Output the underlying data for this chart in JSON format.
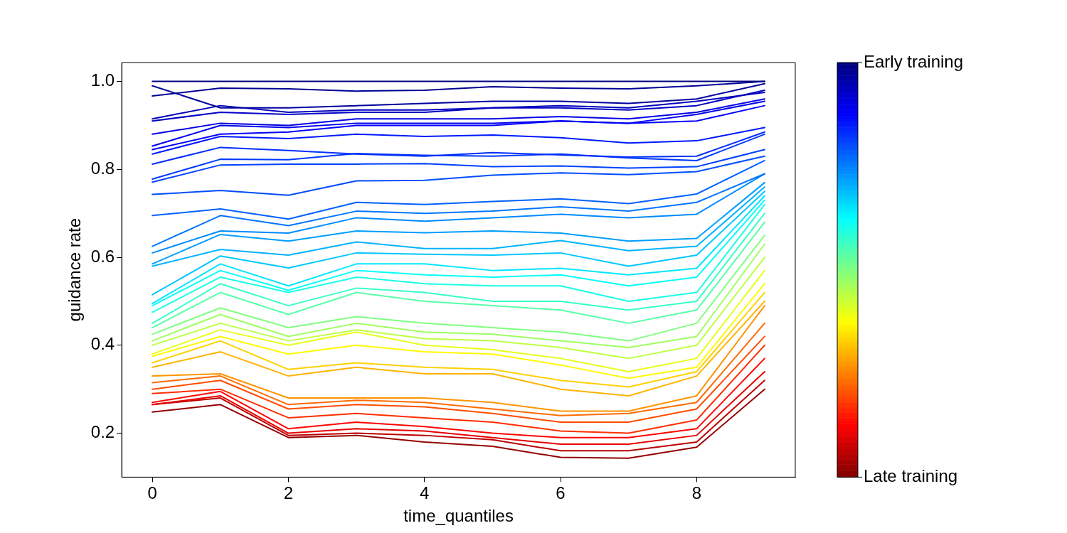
{
  "chart_data": {
    "type": "line",
    "xlabel": "time_quantiles",
    "ylabel": "guidance rate",
    "x": [
      0,
      1,
      2,
      3,
      4,
      5,
      6,
      7,
      8,
      9
    ],
    "xlim": [
      -0.45,
      9.45
    ],
    "xticks": [
      0,
      2,
      4,
      6,
      8
    ],
    "ylim": [
      0.1,
      1.043
    ],
    "yticks": [
      {
        "value": 0.2,
        "label": "0.2"
      },
      {
        "value": 0.4,
        "label": "0.4"
      },
      {
        "value": 0.6,
        "label": "0.6"
      },
      {
        "value": 0.8,
        "label": "0.8"
      },
      {
        "value": 1,
        "label": "1.0"
      }
    ],
    "grid": false,
    "legend": false,
    "marker": "none",
    "line_style": "solid",
    "clim": [
      0,
      1
    ],
    "cticks": [
      {
        "value": 1,
        "label": "Early training"
      },
      {
        "value": 0,
        "label": "Late training"
      }
    ],
    "series": [
      {
        "color": "#000080",
        "values": [
          1.0,
          1.0,
          1.0,
          1.0,
          1.0,
          1.0,
          1.0,
          1.0,
          1.0,
          1.0
        ]
      },
      {
        "color": "#00009e",
        "values": [
          0.99,
          0.94,
          0.94,
          0.945,
          0.95,
          0.955,
          0.955,
          0.95,
          0.96,
          0.995
        ]
      },
      {
        "color": "#000094",
        "values": [
          0.967,
          0.985,
          0.983,
          0.978,
          0.98,
          0.988,
          0.985,
          0.983,
          0.99,
          1.0
        ]
      },
      {
        "color": "#0000bd",
        "values": [
          0.915,
          0.945,
          0.93,
          0.935,
          0.935,
          0.94,
          0.945,
          0.94,
          0.955,
          0.975
        ]
      },
      {
        "color": "#0000c7",
        "values": [
          0.91,
          0.93,
          0.925,
          0.93,
          0.93,
          0.94,
          0.94,
          0.935,
          0.945,
          0.98
        ]
      },
      {
        "color": "#0000e6",
        "values": [
          0.88,
          0.905,
          0.9,
          0.915,
          0.915,
          0.915,
          0.92,
          0.915,
          0.93,
          0.96
        ]
      },
      {
        "color": "#0000f0",
        "values": [
          0.853,
          0.9,
          0.895,
          0.905,
          0.905,
          0.905,
          0.91,
          0.905,
          0.925,
          0.955
        ]
      },
      {
        "color": "#0000fa",
        "values": [
          0.845,
          0.88,
          0.885,
          0.9,
          0.9,
          0.9,
          0.91,
          0.905,
          0.91,
          0.945
        ]
      },
      {
        "color": "#001aff",
        "values": [
          0.835,
          0.875,
          0.87,
          0.88,
          0.875,
          0.878,
          0.872,
          0.86,
          0.865,
          0.895
        ]
      },
      {
        "color": "#002eff",
        "values": [
          0.812,
          0.85,
          0.843,
          0.835,
          0.83,
          0.838,
          0.833,
          0.828,
          0.83,
          0.885
        ]
      },
      {
        "color": "#0038ff",
        "values": [
          0.778,
          0.823,
          0.822,
          0.836,
          0.832,
          0.83,
          0.835,
          0.826,
          0.82,
          0.88
        ]
      },
      {
        "color": "#0042ff",
        "values": [
          0.771,
          0.81,
          0.812,
          0.812,
          0.813,
          0.806,
          0.808,
          0.803,
          0.806,
          0.845
        ]
      },
      {
        "color": "#004dff",
        "values": [
          0.743,
          0.752,
          0.741,
          0.774,
          0.775,
          0.787,
          0.792,
          0.788,
          0.795,
          0.83
        ]
      },
      {
        "color": "#0061ff",
        "values": [
          0.695,
          0.71,
          0.687,
          0.725,
          0.72,
          0.727,
          0.733,
          0.722,
          0.744,
          0.82
        ]
      },
      {
        "color": "#0075ff",
        "values": [
          0.625,
          0.695,
          0.672,
          0.705,
          0.7,
          0.705,
          0.715,
          0.705,
          0.725,
          0.79
        ]
      },
      {
        "color": "#008aff",
        "values": [
          0.61,
          0.66,
          0.655,
          0.69,
          0.682,
          0.69,
          0.698,
          0.69,
          0.698,
          0.79
        ]
      },
      {
        "color": "#009eff",
        "values": [
          0.585,
          0.652,
          0.637,
          0.66,
          0.656,
          0.66,
          0.655,
          0.637,
          0.643,
          0.77
        ]
      },
      {
        "color": "#00b3ff",
        "values": [
          0.58,
          0.618,
          0.605,
          0.635,
          0.62,
          0.62,
          0.638,
          0.615,
          0.625,
          0.76
        ]
      },
      {
        "color": "#00c7ff",
        "values": [
          0.515,
          0.603,
          0.576,
          0.61,
          0.607,
          0.605,
          0.61,
          0.58,
          0.605,
          0.75
        ]
      },
      {
        "color": "#00e6ff",
        "values": [
          0.495,
          0.585,
          0.535,
          0.585,
          0.585,
          0.57,
          0.575,
          0.56,
          0.575,
          0.74
        ]
      },
      {
        "color": "#05fffa",
        "values": [
          0.49,
          0.57,
          0.525,
          0.57,
          0.56,
          0.555,
          0.56,
          0.535,
          0.555,
          0.73
        ]
      },
      {
        "color": "#1affe6",
        "values": [
          0.475,
          0.555,
          0.52,
          0.555,
          0.54,
          0.535,
          0.535,
          0.5,
          0.52,
          0.72
        ]
      },
      {
        "color": "#38ffc7",
        "values": [
          0.45,
          0.54,
          0.49,
          0.53,
          0.52,
          0.5,
          0.5,
          0.48,
          0.5,
          0.7
        ]
      },
      {
        "color": "#57ffa8",
        "values": [
          0.44,
          0.52,
          0.47,
          0.52,
          0.5,
          0.49,
          0.48,
          0.45,
          0.48,
          0.68
        ]
      },
      {
        "color": "#80ff80",
        "values": [
          0.425,
          0.485,
          0.44,
          0.465,
          0.45,
          0.44,
          0.43,
          0.41,
          0.45,
          0.65
        ]
      },
      {
        "color": "#9eff61",
        "values": [
          0.41,
          0.47,
          0.42,
          0.45,
          0.43,
          0.425,
          0.41,
          0.395,
          0.42,
          0.63
        ]
      },
      {
        "color": "#bdff42",
        "values": [
          0.4,
          0.45,
          0.41,
          0.435,
          0.415,
          0.41,
          0.395,
          0.37,
          0.4,
          0.6
        ]
      },
      {
        "color": "#e6ff1a",
        "values": [
          0.38,
          0.435,
          0.4,
          0.43,
          0.4,
          0.39,
          0.37,
          0.34,
          0.37,
          0.57
        ]
      },
      {
        "color": "#fffa00",
        "values": [
          0.375,
          0.42,
          0.38,
          0.4,
          0.385,
          0.38,
          0.355,
          0.325,
          0.35,
          0.54
        ]
      },
      {
        "color": "#ffd100",
        "values": [
          0.36,
          0.41,
          0.345,
          0.36,
          0.35,
          0.345,
          0.32,
          0.305,
          0.34,
          0.52
        ]
      },
      {
        "color": "#ffb300",
        "values": [
          0.35,
          0.385,
          0.33,
          0.35,
          0.335,
          0.335,
          0.3,
          0.285,
          0.33,
          0.5
        ]
      },
      {
        "color": "#ff9400",
        "values": [
          0.33,
          0.335,
          0.28,
          0.28,
          0.28,
          0.27,
          0.25,
          0.25,
          0.285,
          0.49
        ]
      },
      {
        "color": "#ff6b00",
        "values": [
          0.315,
          0.33,
          0.265,
          0.275,
          0.27,
          0.255,
          0.24,
          0.245,
          0.27,
          0.45
        ]
      },
      {
        "color": "#ff4d00",
        "values": [
          0.3,
          0.32,
          0.255,
          0.265,
          0.26,
          0.245,
          0.225,
          0.225,
          0.255,
          0.42
        ]
      },
      {
        "color": "#ff2e00",
        "values": [
          0.29,
          0.3,
          0.235,
          0.245,
          0.235,
          0.225,
          0.205,
          0.2,
          0.23,
          0.4
        ]
      },
      {
        "color": "#ff0500",
        "values": [
          0.27,
          0.295,
          0.21,
          0.225,
          0.215,
          0.2,
          0.19,
          0.19,
          0.21,
          0.37
        ]
      },
      {
        "color": "#e60000",
        "values": [
          0.265,
          0.285,
          0.2,
          0.21,
          0.205,
          0.19,
          0.175,
          0.175,
          0.195,
          0.34
        ]
      },
      {
        "color": "#bd0000",
        "values": [
          0.265,
          0.28,
          0.195,
          0.2,
          0.195,
          0.185,
          0.16,
          0.16,
          0.18,
          0.32
        ]
      },
      {
        "color": "#940000",
        "values": [
          0.248,
          0.265,
          0.19,
          0.195,
          0.18,
          0.17,
          0.145,
          0.143,
          0.168,
          0.3
        ]
      }
    ]
  }
}
